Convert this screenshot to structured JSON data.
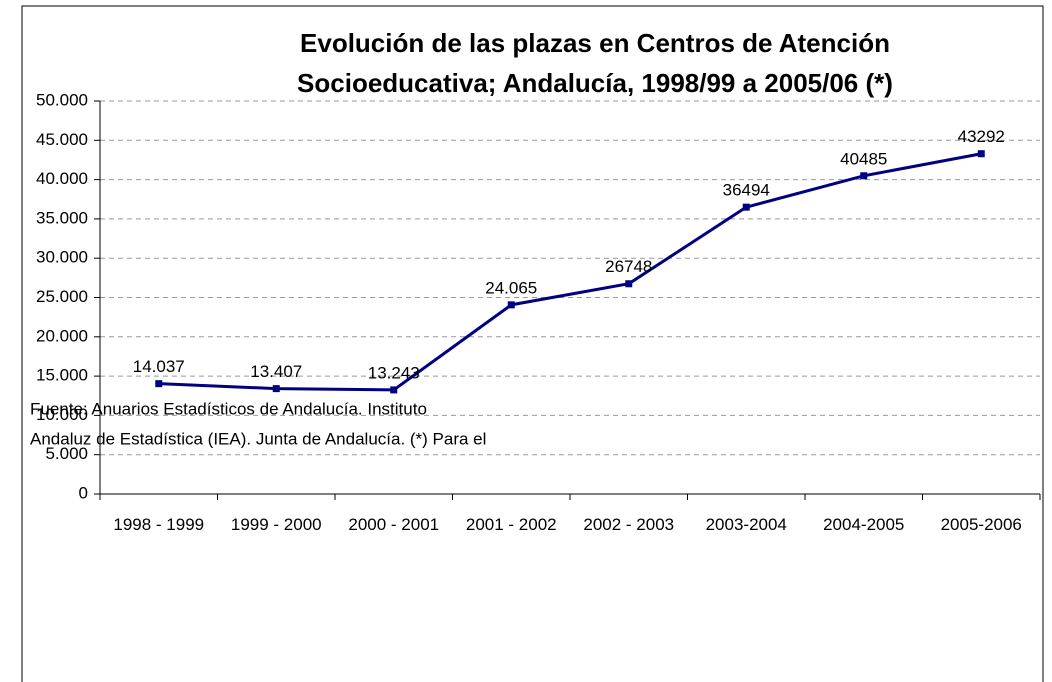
{
  "chart_data": {
    "type": "line",
    "title": [
      "Evolución de las plazas en Centros de Atención",
      "Socioeducativa; Andalucía, 1998/99 a 2005/06 (*)"
    ],
    "categories": [
      "1998 - 1999",
      "1999 - 2000",
      "2000 - 2001",
      "2001 - 2002",
      "2002 - 2003",
      "2003-2004",
      "2004-2005",
      "2005-2006"
    ],
    "values": [
      14037,
      13407,
      13243,
      24065,
      26748,
      36494,
      40485,
      43292
    ],
    "value_labels": [
      "14.037",
      "13.407",
      "13.243",
      "24.065",
      "26748",
      "36494",
      "40485",
      "43292"
    ],
    "color": "#000080",
    "ylim": [
      0,
      50000
    ],
    "yticks": [
      0,
      {
        "value": 5000,
        "label": "5.000"
      },
      {
        "value": 10000,
        "label": "10.000"
      },
      {
        "value": 15000,
        "label": "15.000"
      },
      {
        "value": 20000,
        "label": "20.000"
      },
      {
        "value": 25000,
        "label": "25.000"
      },
      {
        "value": 30000,
        "label": "30.000"
      },
      {
        "value": 35000,
        "label": "35.000"
      },
      {
        "value": 40000,
        "label": "40.000"
      },
      {
        "value": 45000,
        "label": "45.000"
      },
      {
        "value": 50000,
        "label": "50.000"
      }
    ],
    "grid": true,
    "note": [
      "Fuente: Anuarios Estadísticos de Andalucía. Instituto",
      "Andaluz de Estadística (IEA). Junta de Andalucía. (*) Para el"
    ]
  }
}
